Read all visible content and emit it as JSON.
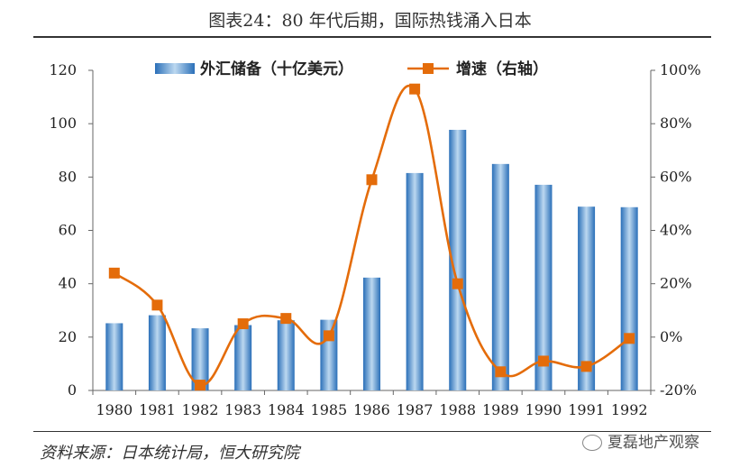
{
  "title": "图表24：80 年代后期，国际热钱涌入日本",
  "source": "资料来源：日本统计局，恒大研究院",
  "watermark": "夏磊地产观察",
  "chart_data": {
    "type": "bar+line",
    "categories": [
      "1980",
      "1981",
      "1982",
      "1983",
      "1984",
      "1985",
      "1986",
      "1987",
      "1988",
      "1989",
      "1990",
      "1991",
      "1992"
    ],
    "series": [
      {
        "name": "外汇储备（十亿美元）",
        "type": "bar",
        "axis": "left",
        "values": [
          25.2,
          28.2,
          23.3,
          24.5,
          26.3,
          26.5,
          42.3,
          81.5,
          97.7,
          84.9,
          77.1,
          68.9,
          68.7
        ]
      },
      {
        "name": "增速（右轴）",
        "type": "line",
        "axis": "right",
        "values": [
          24,
          12,
          -18,
          5,
          7,
          0.5,
          59,
          93,
          20,
          -13,
          -9,
          -11,
          -0.5
        ]
      }
    ],
    "y_left": {
      "min": 0,
      "max": 120,
      "ticks": [
        "0",
        "20",
        "40",
        "60",
        "80",
        "100",
        "120"
      ]
    },
    "y_right": {
      "min": -20,
      "max": 100,
      "ticks": [
        "-20%",
        "0%",
        "20%",
        "40%",
        "60%",
        "80%",
        "100%"
      ]
    },
    "legend": "top-center",
    "colors": {
      "bar": "#4a8fcc",
      "line": "#e46c0a"
    }
  }
}
